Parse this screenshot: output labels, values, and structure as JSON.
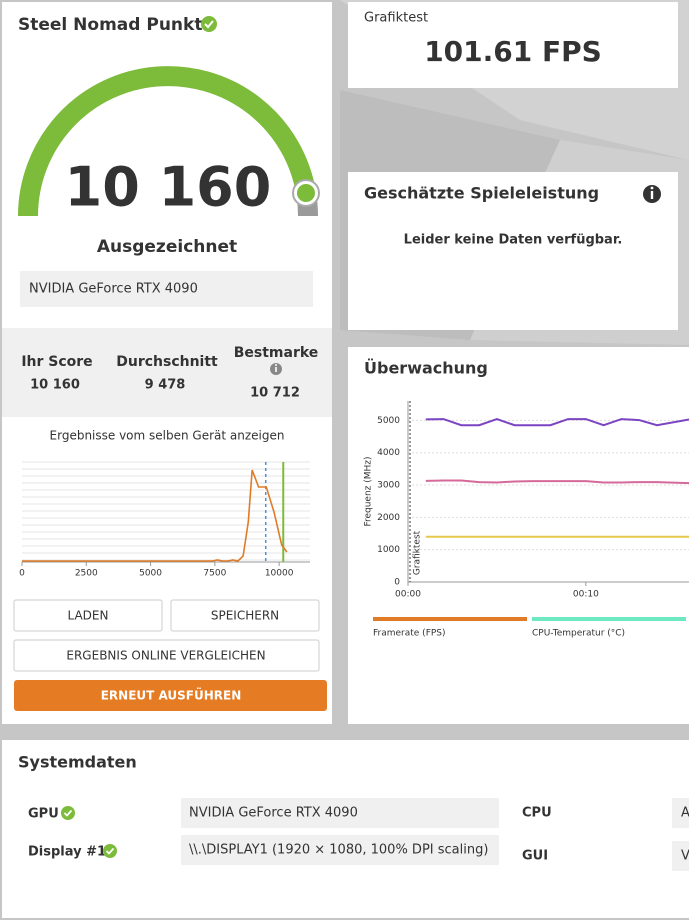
{
  "score_panel": {
    "title": "Steel Nomad Punkte",
    "score": "10 160",
    "rating": "Ausgezeichnet",
    "gpu": "NVIDIA GeForce RTX 4090"
  },
  "comparison": {
    "items": [
      {
        "label": "Ihr Score",
        "value": "10 160"
      },
      {
        "label": "Durchschnitt",
        "value": "9 478"
      },
      {
        "label": "Bestmarke",
        "value": "10 712"
      }
    ]
  },
  "distribution": {
    "title": "Ergebnisse vom selben Gerät anzeigen",
    "x": [
      0,
      2000,
      4000,
      6000,
      7400,
      7600,
      7800,
      8000,
      8200,
      8400,
      8600,
      8800,
      8950,
      9200,
      9500,
      9800,
      10100,
      10300
    ],
    "values": [
      1,
      1,
      1,
      1,
      1,
      2,
      1,
      1,
      2,
      1,
      6,
      40,
      92,
      75,
      75,
      50,
      17,
      10
    ],
    "xlim": [
      0,
      11200
    ],
    "ylim": [
      0,
      100
    ],
    "xticks": [
      0,
      2500,
      5000,
      7500,
      10000
    ],
    "average": 9478,
    "score": 10160
  },
  "buttons": [
    "LADEN",
    "SPEICHERN",
    "ERGEBNIS ONLINE VERGLEICHEN",
    "ERNEUT AUSFÜHREN"
  ],
  "fps_panel": {
    "label": "Grafiktest",
    "value": "101.61 FPS"
  },
  "estimate_panel": {
    "title": "Geschätzte Spieleleistung",
    "message": "Leider keine Daten verfügbar."
  },
  "monitoring": {
    "title": "Überwachung",
    "ylabel": "Frequenz (MHz)",
    "marker_label": "Grafiktest",
    "ylim": [
      0,
      5600
    ],
    "yticks": [
      0,
      1000,
      2000,
      3000,
      4000,
      5000
    ],
    "xlim": [
      0,
      15.8
    ],
    "xticks": [
      {
        "value": 0,
        "label": "00:00"
      },
      {
        "value": 10,
        "label": "00:10"
      }
    ],
    "x": [
      1,
      2,
      3,
      4,
      5,
      6,
      7,
      8,
      9,
      10,
      11,
      12,
      13,
      14,
      15.8
    ],
    "series": [
      {
        "color": "#7a44c2",
        "values": [
          5030,
          5040,
          4850,
          4850,
          5040,
          4850,
          4850,
          4850,
          5040,
          5040,
          4850,
          5040,
          5010,
          4850,
          5030
        ]
      },
      {
        "color": "#d4699a",
        "values": [
          3130,
          3140,
          3140,
          3090,
          3080,
          3110,
          3120,
          3120,
          3120,
          3120,
          3080,
          3080,
          3090,
          3090,
          3060
        ]
      },
      {
        "color": "#e6c94c",
        "values": [
          1400,
          1400,
          1400,
          1400,
          1400,
          1400,
          1400,
          1400,
          1400,
          1400,
          1400,
          1400,
          1400,
          1400,
          1400
        ]
      }
    ],
    "legend": [
      {
        "name": "Framerate (FPS)",
        "color": "#e07b28"
      },
      {
        "name": "CPU-Temperatur (°C)",
        "color": "#6ee8c0"
      }
    ]
  },
  "system": {
    "title": "Systemdaten",
    "rows": [
      {
        "label": "GPU",
        "value": "NVIDIA GeForce RTX 4090"
      },
      {
        "label": "Display #1",
        "value": "\\\\.\\DISPLAY1 (1920 × 1080, 100% DPI scaling)"
      },
      {
        "label": "CPU",
        "value": "A"
      },
      {
        "label": "GUI",
        "value": "V"
      }
    ]
  }
}
